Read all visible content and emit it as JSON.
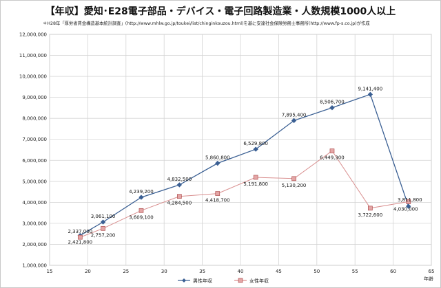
{
  "chart_data": {
    "type": "line",
    "title": "【年収】愛知･E28電子部品・デバイス・電子回路製造業・人数規模1000人以上",
    "subtitle": "＊H28年「厚労省賃金構造基本統計調査」(http://www.mhlw.go.jp/toukei/list/chinginkouzou.html)を基に安達社会保険労務士事務所(http://www.fp-s.co.jp)が作成",
    "xlabel": "年齢",
    "ylabel": "",
    "xlim": [
      15,
      65
    ],
    "ylim": [
      1000000,
      12000000
    ],
    "x_ticks": [
      15,
      20,
      25,
      30,
      35,
      40,
      45,
      50,
      55,
      60,
      65
    ],
    "y_ticks": [
      1000000,
      2000000,
      3000000,
      4000000,
      5000000,
      6000000,
      7000000,
      8000000,
      9000000,
      10000000,
      11000000,
      12000000
    ],
    "grid": true,
    "legend": "bottom",
    "series": [
      {
        "name": "男性年収",
        "color": "#3a5f93",
        "marker": "diamond",
        "x": [
          19,
          22,
          27,
          32,
          37,
          42,
          47,
          52,
          57,
          62
        ],
        "values": [
          2421800,
          3061100,
          4239200,
          4832500,
          5860800,
          6529800,
          7895400,
          8506700,
          9141400,
          3811800
        ],
        "labels": [
          "2,421,800",
          "3,061,100",
          "4,239,200",
          "4,832,500",
          "5,860,800",
          "6,529,800",
          "7,895,400",
          "8,506,700",
          "9,141,400",
          "3,811,800"
        ]
      },
      {
        "name": "女性年収",
        "color": "#d98f8f",
        "marker": "square",
        "x": [
          19,
          22,
          27,
          32,
          37,
          42,
          47,
          52,
          57,
          62
        ],
        "values": [
          2337000,
          2757200,
          3609100,
          4284500,
          4418700,
          5191800,
          5130200,
          6449300,
          3722600,
          4030000
        ],
        "labels": [
          "2,337,000",
          "2,757,200",
          "3,609,100",
          "4,284,500",
          "4,418,700",
          "5,191,800",
          "5,130,200",
          "6,449,300",
          "3,722,600",
          "4,030,000"
        ]
      }
    ]
  }
}
